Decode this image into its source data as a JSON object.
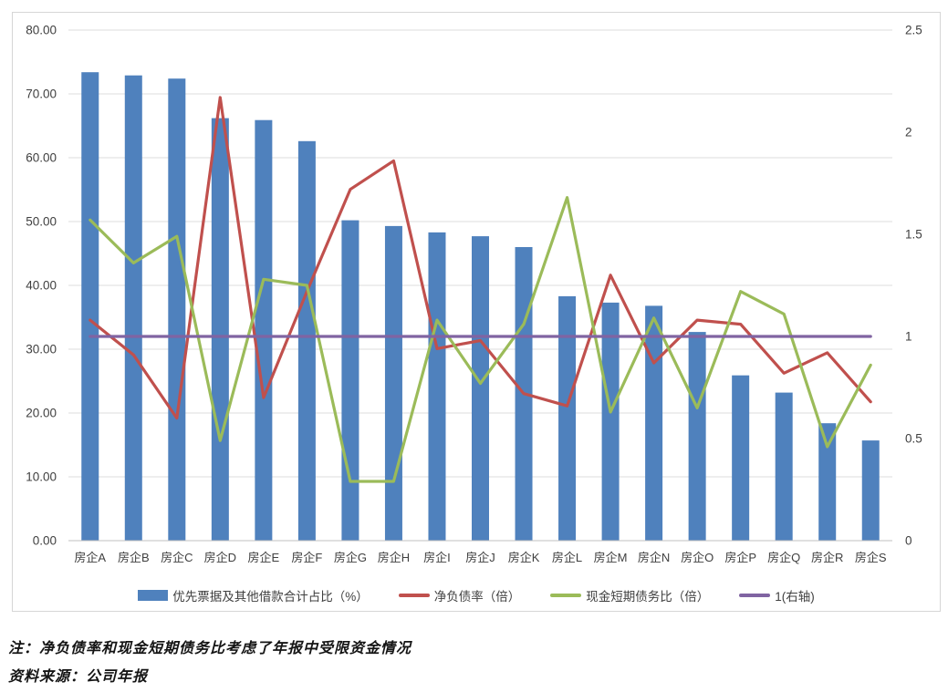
{
  "chart_data": {
    "type": "bar",
    "subtype": "combo-bar-line-dual-axis",
    "title": "",
    "categories": [
      "房企A",
      "房企B",
      "房企C",
      "房企D",
      "房企E",
      "房企F",
      "房企G",
      "房企H",
      "房企I",
      "房企J",
      "房企K",
      "房企L",
      "房企M",
      "房企N",
      "房企O",
      "房企P",
      "房企Q",
      "房企R",
      "房企S"
    ],
    "series": [
      {
        "name": "优先票据及其他借款合计占比（%）",
        "type": "bar",
        "axis": "left",
        "color": "#4F81BD",
        "values": [
          73.4,
          72.9,
          72.4,
          66.2,
          65.9,
          62.6,
          50.2,
          49.3,
          48.3,
          47.7,
          46.0,
          38.3,
          37.3,
          36.8,
          32.7,
          25.9,
          23.2,
          18.4,
          15.7
        ]
      },
      {
        "name": "净负债率（倍）",
        "type": "line",
        "axis": "right",
        "color": "#C0504D",
        "values": [
          1.08,
          0.91,
          0.6,
          2.17,
          0.7,
          1.22,
          1.72,
          1.86,
          0.94,
          0.98,
          0.72,
          0.66,
          1.3,
          0.87,
          1.08,
          1.06,
          0.82,
          0.92,
          0.68
        ]
      },
      {
        "name": "现金短期债务比（倍）",
        "type": "line",
        "axis": "right",
        "color": "#9BBB59",
        "values": [
          1.57,
          1.36,
          1.49,
          0.49,
          1.28,
          1.25,
          0.29,
          0.29,
          1.08,
          0.77,
          1.06,
          1.68,
          0.63,
          1.09,
          0.65,
          1.22,
          1.11,
          0.46,
          0.86
        ]
      },
      {
        "name": "1(右轴)",
        "type": "line",
        "axis": "right",
        "color": "#8064A2",
        "values": [
          1,
          1,
          1,
          1,
          1,
          1,
          1,
          1,
          1,
          1,
          1,
          1,
          1,
          1,
          1,
          1,
          1,
          1,
          1
        ]
      }
    ],
    "left_axis": {
      "min": 0,
      "max": 80,
      "step": 10,
      "labels": [
        "0.00",
        "10.00",
        "20.00",
        "30.00",
        "40.00",
        "50.00",
        "60.00",
        "70.00",
        "80.00"
      ]
    },
    "right_axis": {
      "min": 0,
      "max": 2.5,
      "step": 0.5,
      "labels": [
        "0",
        "0.5",
        "1",
        "1.5",
        "2",
        "2.5"
      ]
    },
    "grid": true,
    "legend_position": "bottom",
    "colors": {
      "gridline": "#dcdcdc",
      "axis_line": "#c0c0c0",
      "frame_border": "#d6d6d6",
      "tick_text": "#404040"
    }
  },
  "footnotes": {
    "note": "注：净负债率和现金短期债务比考虑了年报中受限资金情况",
    "source": "资料来源：公司年报"
  }
}
